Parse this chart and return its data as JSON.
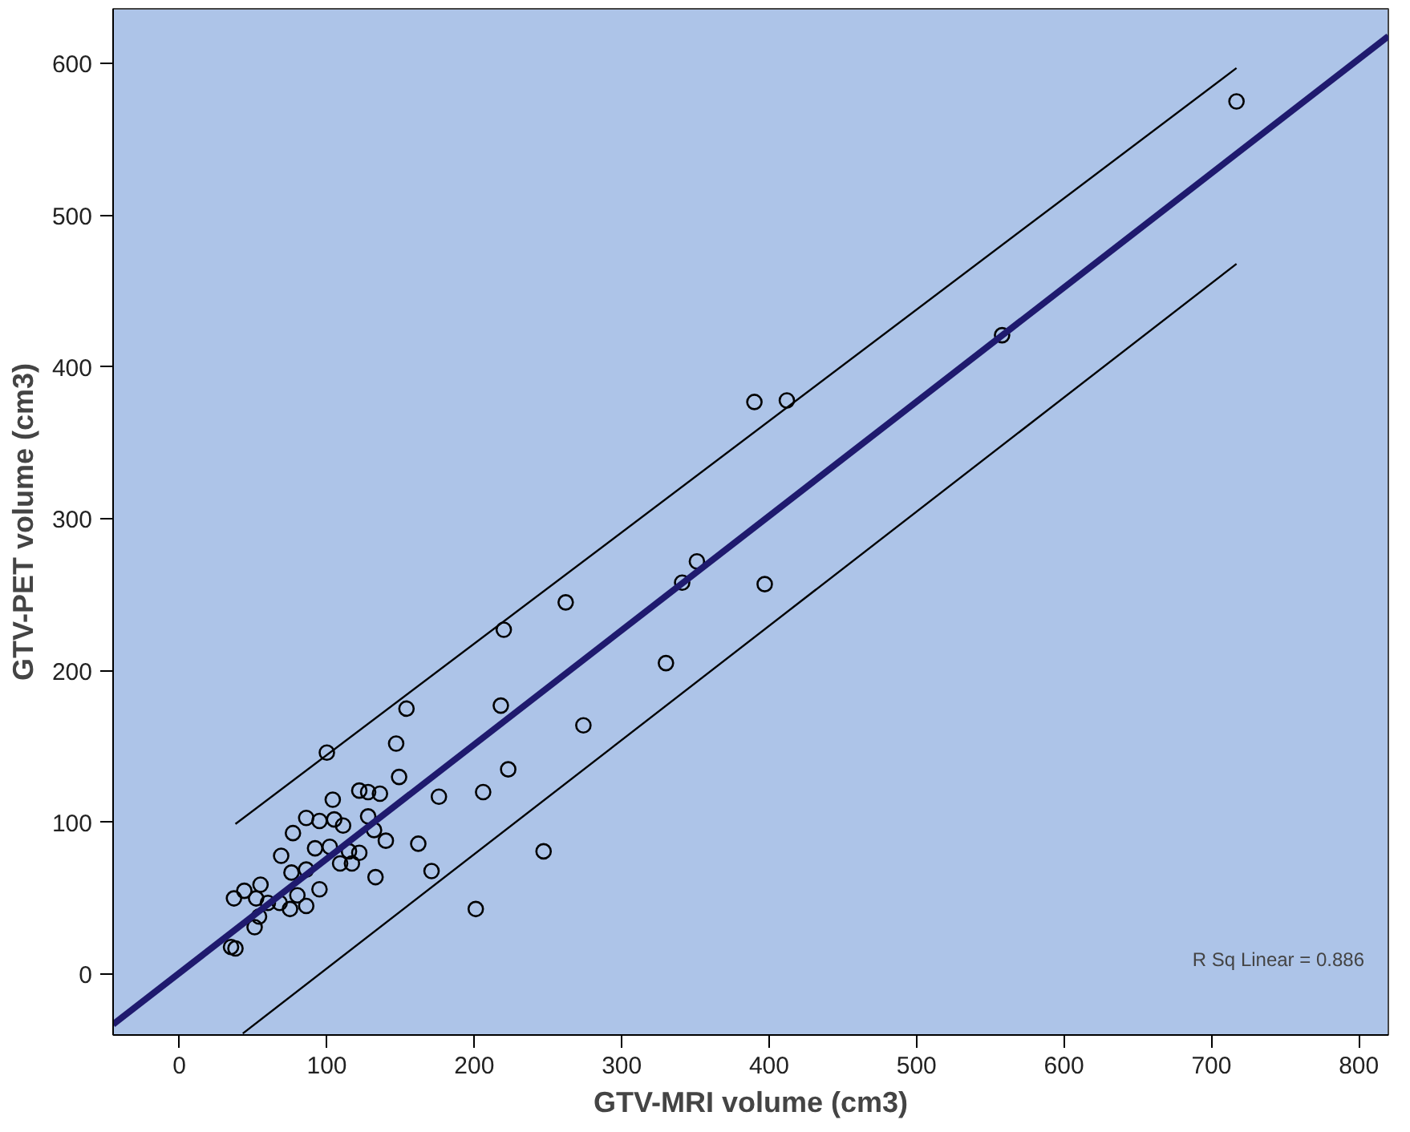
{
  "chart_data": {
    "type": "scatter",
    "xlabel": "GTV-MRI volume (cm3)",
    "ylabel": "GTV-PET volume (cm3)",
    "xlim": [
      -45,
      820
    ],
    "ylim": [
      -40,
      636
    ],
    "xticks": [
      0,
      100,
      200,
      300,
      400,
      500,
      600,
      700,
      800
    ],
    "yticks": [
      0,
      100,
      200,
      300,
      400,
      500,
      600
    ],
    "grid": false,
    "annotations": [
      "R Sq Linear = 0.886"
    ],
    "series": [
      {
        "marker": "circle",
        "color": "#000000",
        "x": [
          262,
          220,
          154,
          218,
          100,
          147,
          274,
          149,
          176,
          206,
          223,
          330,
          247,
          201,
          171,
          162,
          133,
          140,
          122,
          128,
          136,
          104,
          128,
          132,
          111,
          105,
          95,
          86,
          77,
          92,
          102,
          109,
          117,
          122,
          115,
          69,
          76,
          86,
          95,
          80,
          86,
          75,
          68,
          55,
          44,
          37,
          52,
          60,
          54,
          51,
          38,
          35,
          341,
          351,
          717,
          558,
          390,
          412,
          397
        ],
        "values": [
          245,
          227,
          175,
          177,
          146,
          152,
          164,
          130,
          117,
          120,
          135,
          205,
          81,
          43,
          68,
          86,
          64,
          88,
          121,
          120,
          119,
          115,
          104,
          95,
          98,
          102,
          101,
          103,
          93,
          83,
          84,
          73,
          73,
          80,
          81,
          78,
          67,
          69,
          56,
          52,
          45,
          43,
          47,
          59,
          55,
          50,
          50,
          47,
          38,
          31,
          17,
          18,
          258,
          272,
          575,
          421,
          377,
          378,
          257
        ]
      },
      {
        "type": "line",
        "color": "#1f1a6e",
        "line_style": "solid",
        "x": [
          -45,
          820
        ],
        "values": [
          -33,
          618
        ]
      },
      {
        "type": "line",
        "color": "#000000",
        "line_style": "solid",
        "x": [
          38,
          717
        ],
        "values": [
          99,
          597
        ]
      },
      {
        "type": "line",
        "color": "#000000",
        "line_style": "solid",
        "x": [
          43,
          717
        ],
        "values": [
          -39,
          468
        ]
      }
    ]
  }
}
